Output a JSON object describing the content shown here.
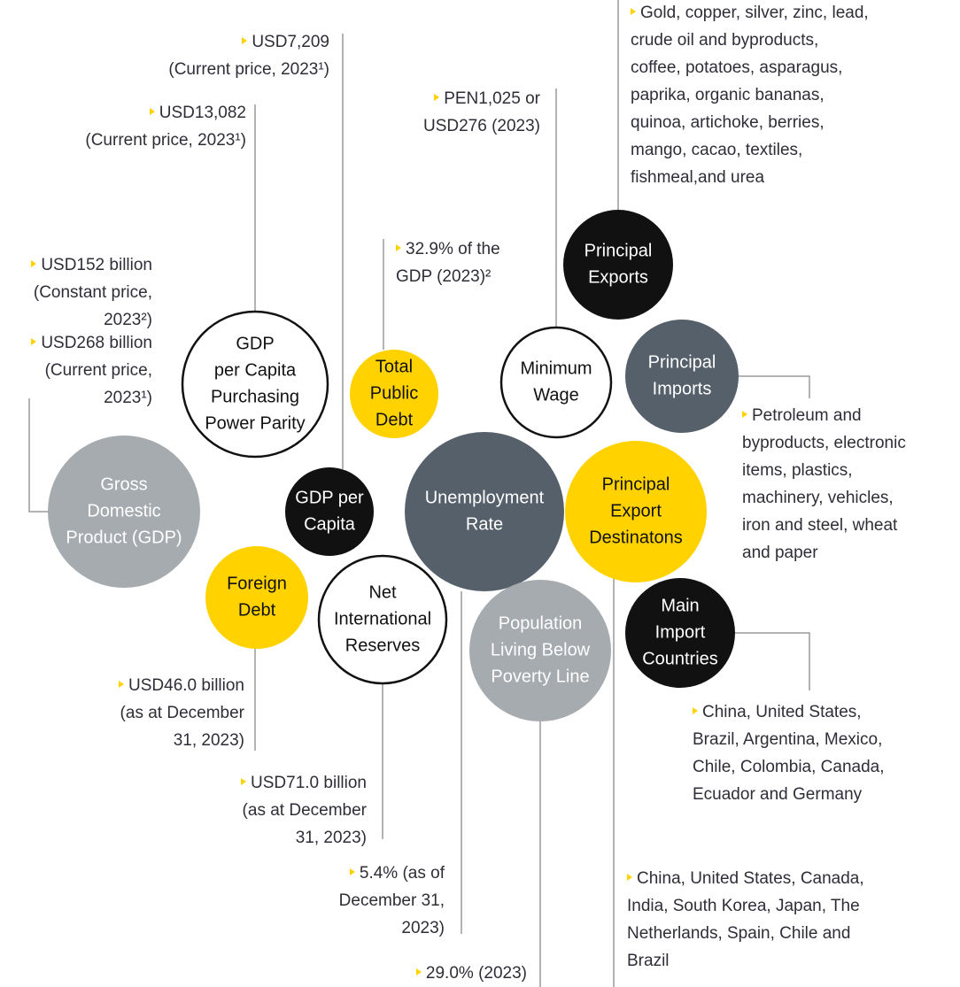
{
  "nodes": [
    {
      "label": [
        "GDP",
        "per Capita",
        "Purchasing",
        "Power Parity"
      ],
      "notes": [
        [
          "USD13,082",
          "(Current price, 2023¹)"
        ]
      ]
    },
    {
      "label": [
        "GDP per",
        "Capita"
      ],
      "notes": [
        [
          "USD7,209",
          "(Current price, 2023¹)"
        ]
      ]
    },
    {
      "label": [
        "Gross",
        "Domestic",
        "Product (GDP)"
      ],
      "notes": [
        [
          "USD152 billion",
          "(Constant price,",
          "2023²)"
        ],
        [
          "USD268 billion",
          "(Current price,",
          "2023¹)"
        ]
      ]
    },
    {
      "label": [
        "Total",
        "Public",
        "Debt"
      ],
      "notes": [
        [
          "32.9% of the",
          "GDP (2023)²"
        ]
      ]
    },
    {
      "label": [
        "Minimum",
        "Wage"
      ],
      "notes": [
        [
          "PEN1,025 or",
          "USD276 (2023)"
        ]
      ]
    },
    {
      "label": [
        "Principal",
        "Exports"
      ],
      "notes": [
        [
          "Gold, copper, silver, zinc, lead,",
          "crude oil and byproducts,",
          "coffee, potatoes, asparagus,",
          "paprika, organic bananas,",
          "quinoa, artichoke, berries,",
          "mango, cacao, textiles,",
          "fishmeal,and urea"
        ]
      ]
    },
    {
      "label": [
        "Principal",
        "Imports"
      ],
      "notes": [
        [
          "Petroleum and",
          "byproducts, electronic",
          "items, plastics,",
          "machinery, vehicles,",
          "iron and steel, wheat",
          "and paper"
        ]
      ]
    },
    {
      "label": [
        "Unemployment",
        "Rate"
      ],
      "notes": [
        [
          "5.4% (as of",
          "December 31,",
          "2023)"
        ]
      ]
    },
    {
      "label": [
        "Principal",
        "Export",
        "Destinatons"
      ],
      "notes": [
        [
          "China, United States, Canada,",
          "India, South Korea, Japan, The",
          "Netherlands, Spain, Chile and",
          "Brazil"
        ]
      ]
    },
    {
      "label": [
        "Foreign",
        "Debt"
      ],
      "notes": [
        [
          "USD46.0 billion",
          "(as at December",
          "31, 2023)"
        ]
      ]
    },
    {
      "label": [
        "Net",
        "International",
        "Reserves"
      ],
      "notes": [
        [
          "USD71.0 billion",
          "(as at December",
          "31, 2023)"
        ]
      ]
    },
    {
      "label": [
        "Population",
        "Living Below",
        "Poverty Line"
      ],
      "notes": [
        [
          "29.0% (2023)"
        ]
      ]
    },
    {
      "label": [
        "Main",
        "Import",
        "Countries"
      ],
      "notes": [
        [
          "China, United States,",
          "Brazil, Argentina, Mexico,",
          "Chile, Colombia, Canada,",
          "Ecuador and Germany"
        ]
      ]
    }
  ]
}
